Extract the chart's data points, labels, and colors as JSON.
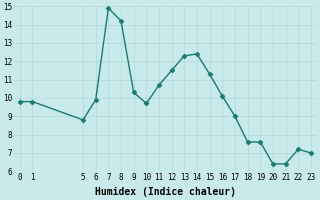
{
  "x": [
    0,
    1,
    5,
    6,
    7,
    8,
    9,
    10,
    11,
    12,
    13,
    14,
    15,
    16,
    17,
    18,
    19,
    20,
    21,
    22,
    23
  ],
  "y": [
    9.8,
    9.8,
    8.8,
    9.9,
    14.9,
    14.2,
    10.3,
    9.7,
    10.7,
    11.5,
    12.3,
    12.4,
    11.3,
    10.1,
    9.0,
    7.6,
    7.6,
    6.4,
    6.4,
    7.2,
    7.0
  ],
  "line_color": "#1a7a6e",
  "marker_color": "#1a7a6e",
  "bg_color": "#c8eaea",
  "grid_color": "#b0d8d8",
  "xlabel": "Humidex (Indice chaleur)",
  "ylim": [
    6,
    15
  ],
  "xlim_min": -0.5,
  "xlim_max": 23.5,
  "yticks": [
    6,
    7,
    8,
    9,
    10,
    11,
    12,
    13,
    14,
    15
  ],
  "xticks": [
    0,
    1,
    5,
    6,
    7,
    8,
    9,
    10,
    11,
    12,
    13,
    14,
    15,
    16,
    17,
    18,
    19,
    20,
    21,
    22,
    23
  ],
  "tick_fontsize": 5.5,
  "xlabel_fontsize": 7,
  "marker_size": 2.5,
  "line_width": 1.0
}
